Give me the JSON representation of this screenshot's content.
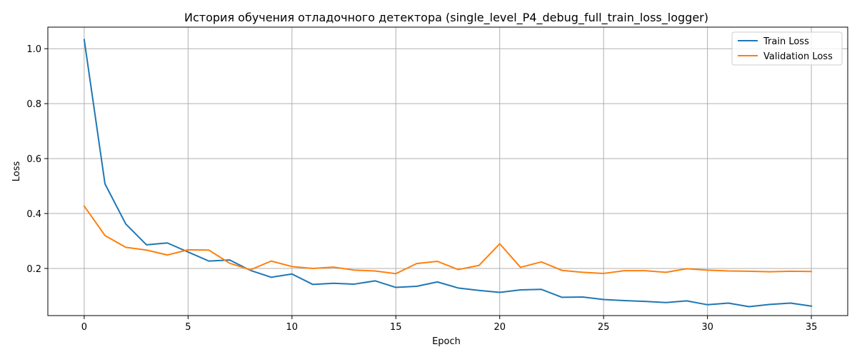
{
  "chart_data": {
    "type": "line",
    "title": "История обучения отладочного детектора (single_level_P4_debug_full_train_loss_logger)",
    "xlabel": "Epoch",
    "ylabel": "Loss",
    "xlim": [
      -1.75,
      36.75
    ],
    "ylim": [
      0.0285,
      1.0785
    ],
    "xticks": [
      0,
      5,
      10,
      15,
      20,
      25,
      30,
      35
    ],
    "yticks": [
      0.2,
      0.4,
      0.6,
      0.8,
      1.0
    ],
    "ytick_labels": [
      "0.2",
      "0.4",
      "0.6",
      "0.8",
      "1.0"
    ],
    "grid": true,
    "legend_position": "top-right",
    "x": [
      0,
      1,
      2,
      3,
      4,
      5,
      6,
      7,
      8,
      9,
      10,
      11,
      12,
      13,
      14,
      15,
      16,
      17,
      18,
      19,
      20,
      21,
      22,
      23,
      24,
      25,
      26,
      27,
      28,
      29,
      30,
      31,
      32,
      33,
      34,
      35
    ],
    "series": [
      {
        "name": "Train Loss",
        "color": "#1f77b4",
        "values": [
          1.033,
          0.508,
          0.362,
          0.286,
          0.293,
          0.26,
          0.227,
          0.231,
          0.193,
          0.168,
          0.18,
          0.142,
          0.146,
          0.143,
          0.155,
          0.131,
          0.135,
          0.151,
          0.129,
          0.12,
          0.113,
          0.122,
          0.124,
          0.095,
          0.096,
          0.087,
          0.083,
          0.08,
          0.076,
          0.082,
          0.068,
          0.074,
          0.061,
          0.069,
          0.074,
          0.063
        ]
      },
      {
        "name": "Validation Loss",
        "color": "#ff7f0e",
        "values": [
          0.427,
          0.32,
          0.277,
          0.267,
          0.249,
          0.268,
          0.267,
          0.219,
          0.195,
          0.227,
          0.207,
          0.2,
          0.205,
          0.194,
          0.191,
          0.181,
          0.218,
          0.226,
          0.196,
          0.211,
          0.29,
          0.204,
          0.224,
          0.193,
          0.186,
          0.182,
          0.192,
          0.192,
          0.186,
          0.199,
          0.194,
          0.191,
          0.19,
          0.188,
          0.19,
          0.189
        ]
      }
    ]
  }
}
